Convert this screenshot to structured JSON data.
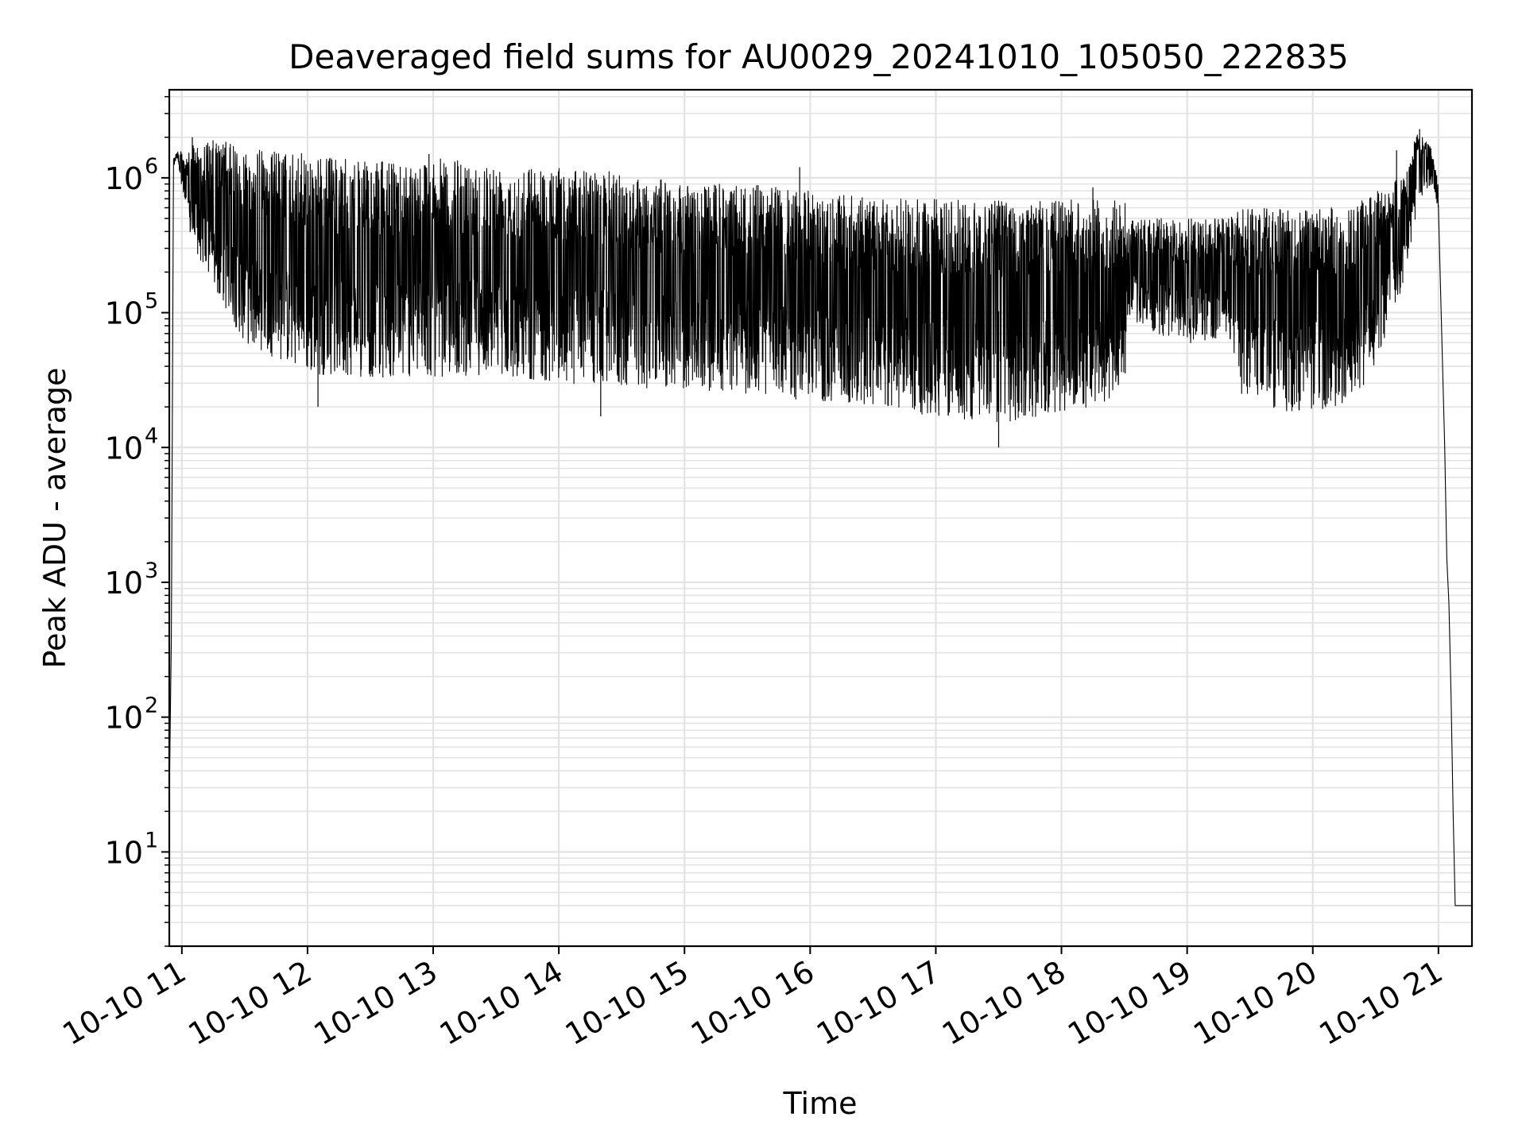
{
  "chart_data": {
    "type": "line",
    "title": "Deaveraged field sums for AU0029_20241010_105050_222835",
    "xlabel": "Time",
    "ylabel": "Peak ADU - average",
    "y_scale": "log",
    "ylim": [
      2,
      4500000.0
    ],
    "xlim": [
      "2024-10-10 10:54",
      "2024-10-10 21:16"
    ],
    "grid": true,
    "legend": "none",
    "line_color": "#000000",
    "grid_color": "#e3e3e3",
    "x_ticks": [
      {
        "t": "2024-10-10 11:00",
        "label": "10-10 11"
      },
      {
        "t": "2024-10-10 12:00",
        "label": "10-10 12"
      },
      {
        "t": "2024-10-10 13:00",
        "label": "10-10 13"
      },
      {
        "t": "2024-10-10 14:00",
        "label": "10-10 14"
      },
      {
        "t": "2024-10-10 15:00",
        "label": "10-10 15"
      },
      {
        "t": "2024-10-10 16:00",
        "label": "10-10 16"
      },
      {
        "t": "2024-10-10 17:00",
        "label": "10-10 17"
      },
      {
        "t": "2024-10-10 18:00",
        "label": "10-10 18"
      },
      {
        "t": "2024-10-10 19:00",
        "label": "10-10 19"
      },
      {
        "t": "2024-10-10 20:00",
        "label": "10-10 20"
      },
      {
        "t": "2024-10-10 21:00",
        "label": "10-10 21"
      }
    ],
    "y_ticks": [
      {
        "value": 10,
        "exp": "1"
      },
      {
        "value": 100,
        "exp": "2"
      },
      {
        "value": 1000,
        "exp": "3"
      },
      {
        "value": 10000,
        "exp": "4"
      },
      {
        "value": 100000,
        "exp": "5"
      },
      {
        "value": 1000000,
        "exp": "6"
      }
    ],
    "series": [
      {
        "envelope": [
          {
            "t": "2024-10-10 10:54",
            "low": 25,
            "high": 25
          },
          {
            "t": "2024-10-10 10:55",
            "low": 400,
            "high": 400
          },
          {
            "t": "2024-10-10 10:56",
            "low": 1200000,
            "high": 1400000
          },
          {
            "t": "2024-10-10 10:58",
            "low": 1400000,
            "high": 1600000
          },
          {
            "t": "2024-10-10 11:03",
            "low": 400000,
            "high": 1500000
          },
          {
            "t": "2024-10-10 11:06",
            "low": 300000,
            "high": 1800000
          },
          {
            "t": "2024-10-10 11:15",
            "low": 150000,
            "high": 1900000
          },
          {
            "t": "2024-10-10 11:30",
            "low": 60000,
            "high": 1700000
          },
          {
            "t": "2024-10-10 12:00",
            "low": 35000,
            "high": 1500000
          },
          {
            "t": "2024-10-10 12:30",
            "low": 33000,
            "high": 1300000
          },
          {
            "t": "2024-10-10 13:00",
            "low": 33000,
            "high": 1400000
          },
          {
            "t": "2024-10-10 13:30",
            "low": 35000,
            "high": 1300000
          },
          {
            "t": "2024-10-10 14:00",
            "low": 30000,
            "high": 1200000
          },
          {
            "t": "2024-10-10 14:30",
            "low": 28000,
            "high": 1100000
          },
          {
            "t": "2024-10-10 15:00",
            "low": 27000,
            "high": 900000
          },
          {
            "t": "2024-10-10 15:30",
            "low": 25000,
            "high": 900000
          },
          {
            "t": "2024-10-10 16:00",
            "low": 22000,
            "high": 800000
          },
          {
            "t": "2024-10-10 16:30",
            "low": 19000,
            "high": 700000
          },
          {
            "t": "2024-10-10 17:00",
            "low": 17000,
            "high": 700000
          },
          {
            "t": "2024-10-10 17:30",
            "low": 15000,
            "high": 700000
          },
          {
            "t": "2024-10-10 18:00",
            "low": 18000,
            "high": 700000
          },
          {
            "t": "2024-10-10 18:30",
            "low": 22000,
            "high": 700000
          },
          {
            "t": "2024-10-10 18:32",
            "low": 90000,
            "high": 500000
          },
          {
            "t": "2024-10-10 19:00",
            "low": 55000,
            "high": 500000
          },
          {
            "t": "2024-10-10 19:20",
            "low": 70000,
            "high": 500000
          },
          {
            "t": "2024-10-10 19:25",
            "low": 25000,
            "high": 600000
          },
          {
            "t": "2024-10-10 19:45",
            "low": 18000,
            "high": 600000
          },
          {
            "t": "2024-10-10 20:15",
            "low": 20000,
            "high": 600000
          },
          {
            "t": "2024-10-10 20:25",
            "low": 30000,
            "high": 700000
          },
          {
            "t": "2024-10-10 20:35",
            "low": 60000,
            "high": 900000
          },
          {
            "t": "2024-10-10 20:45",
            "low": 200000,
            "high": 1200000
          },
          {
            "t": "2024-10-10 20:50",
            "low": 600000,
            "high": 2300000
          },
          {
            "t": "2024-10-10 20:56",
            "low": 900000,
            "high": 1800000
          },
          {
            "t": "2024-10-10 21:00",
            "low": 600000,
            "high": 900000
          }
        ],
        "tail": [
          {
            "t": "2024-10-10 21:00",
            "value": 600000
          },
          {
            "t": "2024-10-10 21:01",
            "value": 150000
          },
          {
            "t": "2024-10-10 21:03",
            "value": 10000
          },
          {
            "t": "2024-10-10 21:04",
            "value": 1500
          },
          {
            "t": "2024-10-10 21:05",
            "value": 700
          },
          {
            "t": "2024-10-10 21:06",
            "value": 150
          },
          {
            "t": "2024-10-10 21:07",
            "value": 20
          },
          {
            "t": "2024-10-10 21:08",
            "value": 4
          },
          {
            "t": "2024-10-10 21:16",
            "value": 4
          }
        ],
        "spikes": [
          {
            "t": "2024-10-10 11:05",
            "value": 2000000
          },
          {
            "t": "2024-10-10 11:21",
            "value": 1850000
          },
          {
            "t": "2024-10-10 12:05",
            "value": 20000
          },
          {
            "t": "2024-10-10 12:58",
            "value": 1500000
          },
          {
            "t": "2024-10-10 14:20",
            "value": 17000
          },
          {
            "t": "2024-10-10 15:55",
            "value": 1200000
          },
          {
            "t": "2024-10-10 17:30",
            "value": 10000
          },
          {
            "t": "2024-10-10 18:15",
            "value": 850000
          },
          {
            "t": "2024-10-10 20:40",
            "value": 1600000
          },
          {
            "t": "2024-10-10 20:51",
            "value": 2300000
          }
        ]
      }
    ]
  }
}
